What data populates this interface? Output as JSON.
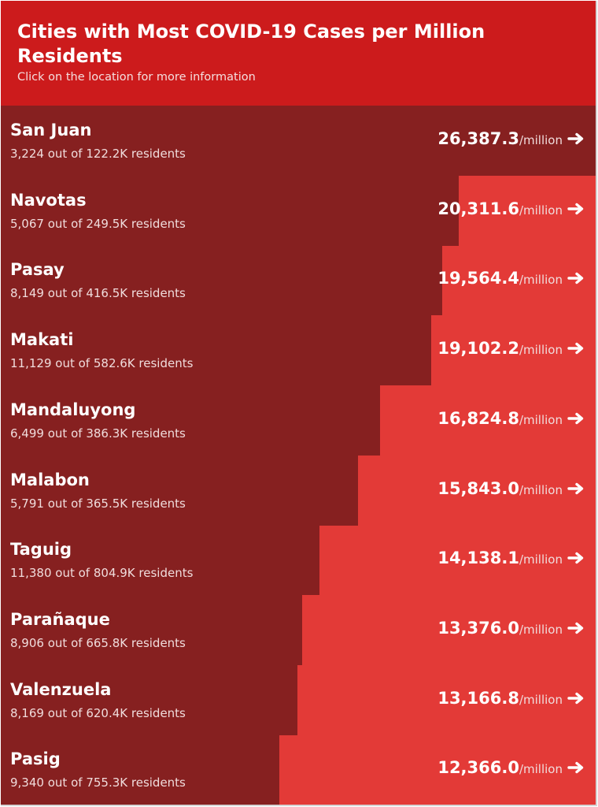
{
  "header": {
    "title": "Cities with Most COVID-19 Cases per Million Residents",
    "subtitle": "Click on the location for more information"
  },
  "colors": {
    "header_bg": "#cc1b1c",
    "bar": "#862020",
    "background": "#e33a37"
  },
  "unit_label": "/million",
  "detail_middle": "out of",
  "detail_suffix": "residents",
  "chart_data": {
    "type": "bar",
    "orientation": "horizontal",
    "title": "Cities with Most COVID-19 Cases per Million Residents",
    "xlim": [
      0,
      26387.3
    ],
    "categories": [
      "San Juan",
      "Navotas",
      "Pasay",
      "Makati",
      "Mandaluyong",
      "Malabon",
      "Taguig",
      "Parañaque",
      "Valenzuela",
      "Pasig"
    ],
    "values": [
      26387.3,
      20311.6,
      19564.4,
      19102.2,
      16824.8,
      15843.0,
      14138.1,
      13376.0,
      13166.8,
      12366.0
    ],
    "value_labels": [
      "26,387.3",
      "20,311.6",
      "19,564.4",
      "19,102.2",
      "16,824.8",
      "15,843.0",
      "14,138.1",
      "13,376.0",
      "13,166.8",
      "12,366.0"
    ],
    "cases": [
      "3,224",
      "5,067",
      "8,149",
      "11,129",
      "6,499",
      "5,791",
      "11,380",
      "8,906",
      "8,169",
      "9,340"
    ],
    "residents": [
      "122.2K",
      "249.5K",
      "416.5K",
      "582.6K",
      "386.3K",
      "365.5K",
      "804.9K",
      "665.8K",
      "620.4K",
      "755.3K"
    ]
  }
}
